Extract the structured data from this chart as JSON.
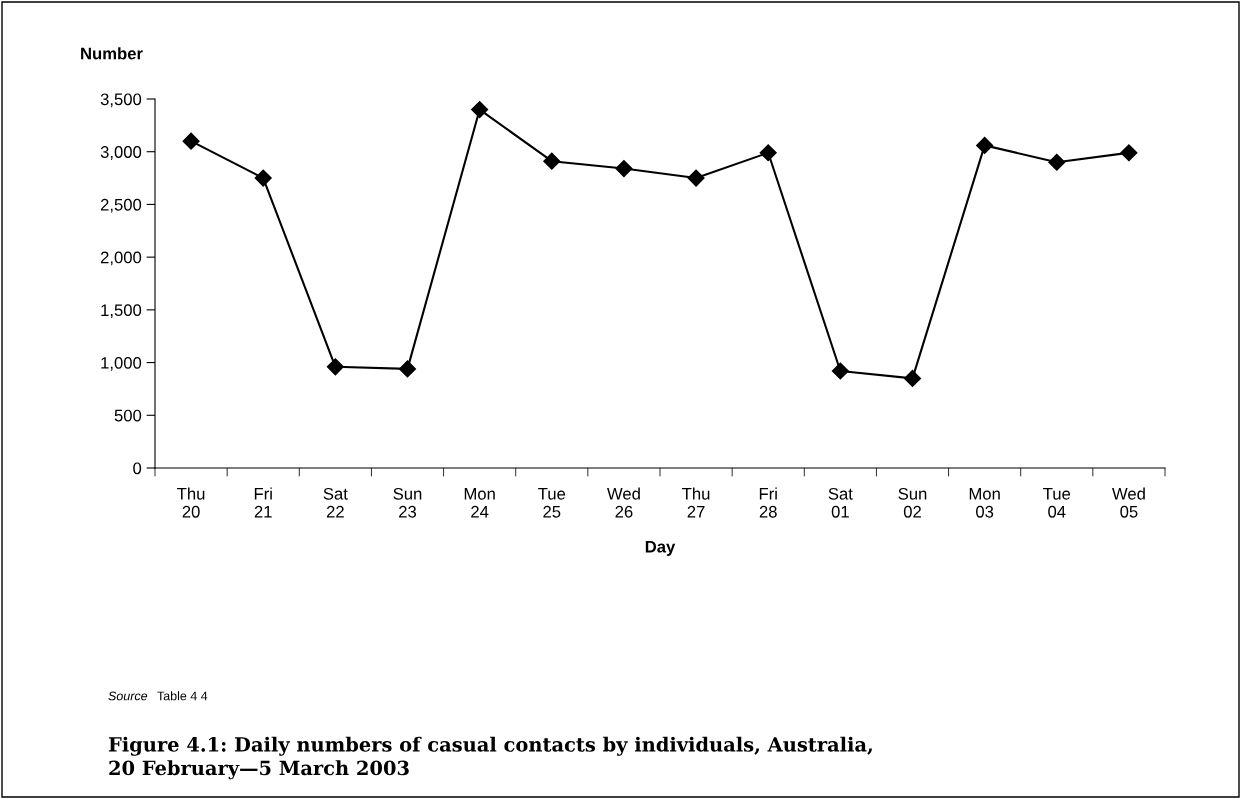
{
  "chart_data": {
    "type": "line",
    "title": "Figure 4.1: Daily numbers of casual contacts by individuals, Australia,\n20 February—5 March 2003",
    "xlabel": "Day",
    "ylabel": "Number",
    "categories": [
      "Thu\n20",
      "Fri\n21",
      "Sat\n22",
      "Sun\n23",
      "Mon\n24",
      "Tue\n25",
      "Wed\n26",
      "Thu\n27",
      "Fri\n28",
      "Sat\n01",
      "Sun\n02",
      "Mon\n03",
      "Tue\n04",
      "Wed\n05"
    ],
    "series": [
      {
        "color": "#000000",
        "values": [
          3100,
          2750,
          960,
          940,
          3400,
          2910,
          2840,
          2750,
          2990,
          920,
          850,
          3060,
          2900,
          2990
        ]
      }
    ],
    "ylim": [
      0,
      3500
    ],
    "yticks": [
      0,
      500,
      {
        "value": 1000,
        "label": "1,000"
      },
      {
        "value": 1500,
        "label": "1,500"
      },
      {
        "value": 2000,
        "label": "2,000"
      },
      {
        "value": 2500,
        "label": "2,500"
      },
      {
        "value": 3000,
        "label": "3,000"
      },
      {
        "value": 3500,
        "label": "3,500"
      }
    ],
    "marker": "diamond",
    "line_style": "solid",
    "grid": false,
    "legend": false,
    "annotations": [
      "Source  Table 4 4"
    ]
  }
}
